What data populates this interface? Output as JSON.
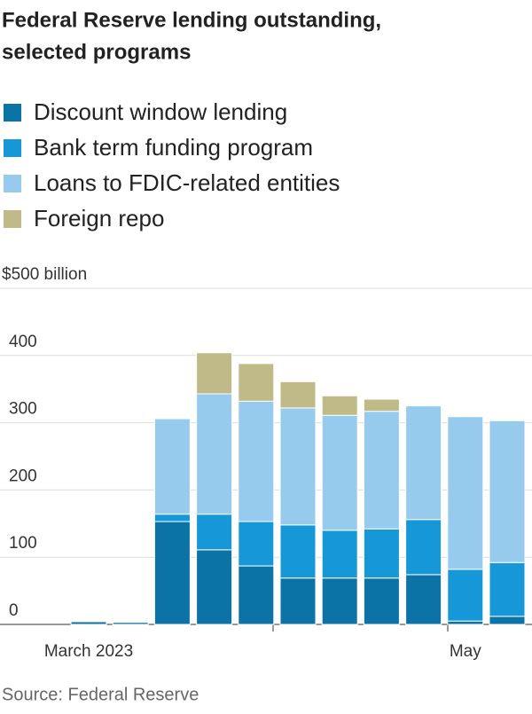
{
  "chart_data": {
    "type": "stacked-bar",
    "title": [
      "Federal Reserve lending outstanding,",
      "selected programs"
    ],
    "source": "Source: Federal Reserve",
    "categories": [
      "March 2023",
      null,
      null,
      null,
      null,
      null,
      null,
      null,
      null,
      "May",
      null
    ],
    "ylim": [
      0,
      500
    ],
    "yticks": [
      0,
      100,
      200,
      300,
      400,
      {
        "value": 500,
        "label": "$500 billion"
      }
    ],
    "grid": true,
    "series": [
      {
        "name": "Discount window lending",
        "color": "#0b73a6",
        "values": [
          4,
          3,
          153,
          111,
          87,
          69,
          69,
          69,
          74,
          5,
          12
        ]
      },
      {
        "name": "Bank term funding program",
        "color": "#1597d8",
        "values": [
          0,
          0,
          11,
          53,
          66,
          79,
          71,
          73,
          82,
          77,
          80
        ]
      },
      {
        "name": "Loans to FDIC-related entities",
        "color": "#97cbee",
        "values": [
          0,
          0,
          142,
          179,
          179,
          174,
          171,
          175,
          169,
          227,
          211
        ]
      },
      {
        "name": "Foreign repo",
        "color": "#c0ba88",
        "values": [
          0,
          0,
          0,
          61,
          56,
          39,
          29,
          18,
          0,
          0,
          0
        ]
      }
    ]
  }
}
